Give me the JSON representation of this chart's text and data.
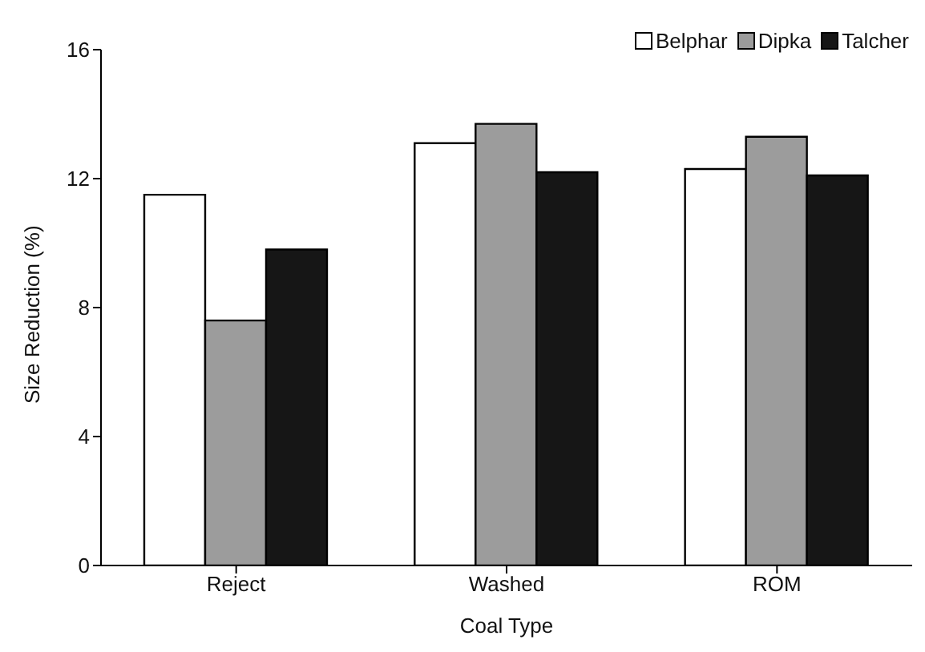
{
  "chart_data": {
    "type": "bar",
    "xlabel": "Coal Type",
    "ylabel": "Size Reduction (%)",
    "categories": [
      "Reject",
      "Washed",
      "ROM"
    ],
    "series": [
      {
        "name": "Belphar",
        "color": "#ffffff",
        "values": [
          11.5,
          13.1,
          12.3
        ]
      },
      {
        "name": "Dipka",
        "color": "#9c9c9c",
        "values": [
          7.6,
          13.7,
          13.3
        ]
      },
      {
        "name": "Talcher",
        "color": "#161616",
        "values": [
          9.8,
          12.2,
          12.1
        ]
      }
    ],
    "ylim": [
      0,
      16
    ],
    "yticks": [
      0,
      4,
      8,
      12,
      16
    ],
    "grid": false,
    "legend": "top right"
  }
}
